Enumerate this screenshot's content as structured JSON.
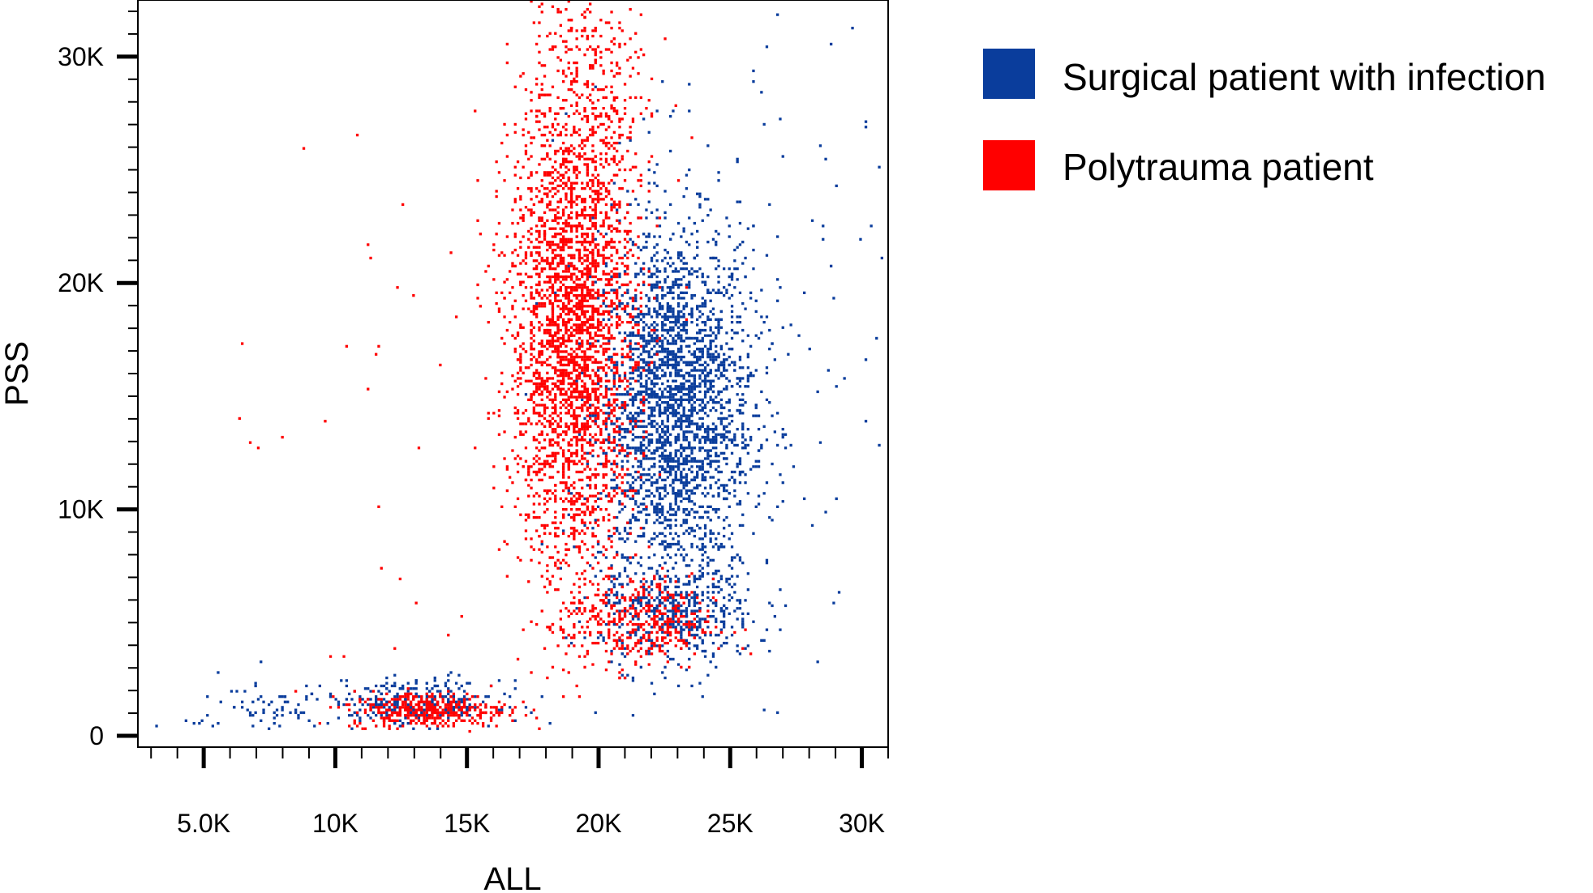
{
  "chart_data": {
    "type": "scatter",
    "title": "",
    "xlabel": "ALL",
    "ylabel": "PSS",
    "xlim": [
      2500,
      31000
    ],
    "ylim": [
      -500,
      32500
    ],
    "x_ticks": [
      {
        "value": 5000,
        "label": "5.0K"
      },
      {
        "value": 10000,
        "label": "10K"
      },
      {
        "value": 15000,
        "label": "15K"
      },
      {
        "value": 20000,
        "label": "20K"
      },
      {
        "value": 25000,
        "label": "25K"
      },
      {
        "value": 30000,
        "label": "30K"
      }
    ],
    "y_ticks": [
      {
        "value": 0,
        "label": "0"
      },
      {
        "value": 10000,
        "label": "10K"
      },
      {
        "value": 20000,
        "label": "20K"
      },
      {
        "value": 30000,
        "label": "30K"
      }
    ],
    "grid": false,
    "legend_position": "right",
    "series": [
      {
        "name": "Surgical patient with infection",
        "color": "#0a3d9c",
        "clusters": [
          {
            "x": 22800,
            "y": 14500,
            "sx": 1500,
            "sy": 4000,
            "n": 2600
          },
          {
            "x": 23000,
            "y": 5500,
            "sx": 1500,
            "sy": 1200,
            "n": 420
          },
          {
            "x": 13000,
            "y": 1500,
            "sx": 1600,
            "sy": 500,
            "n": 320
          },
          {
            "x": 7000,
            "y": 1200,
            "sx": 1400,
            "sy": 800,
            "n": 70
          },
          {
            "x": 25000,
            "y": 18000,
            "sx": 3000,
            "sy": 7000,
            "n": 160
          }
        ]
      },
      {
        "name": "Polytrauma patient",
        "color": "#ff0000",
        "clusters": [
          {
            "x": 19000,
            "y": 18000,
            "sx": 1200,
            "sy": 5500,
            "n": 3000
          },
          {
            "x": 21500,
            "y": 5000,
            "sx": 1400,
            "sy": 1000,
            "n": 380
          },
          {
            "x": 13500,
            "y": 1200,
            "sx": 1500,
            "sy": 400,
            "n": 380
          },
          {
            "x": 19500,
            "y": 29000,
            "sx": 1200,
            "sy": 2500,
            "n": 200
          },
          {
            "x": 12000,
            "y": 12000,
            "sx": 3000,
            "sy": 8000,
            "n": 35
          }
        ]
      }
    ]
  }
}
